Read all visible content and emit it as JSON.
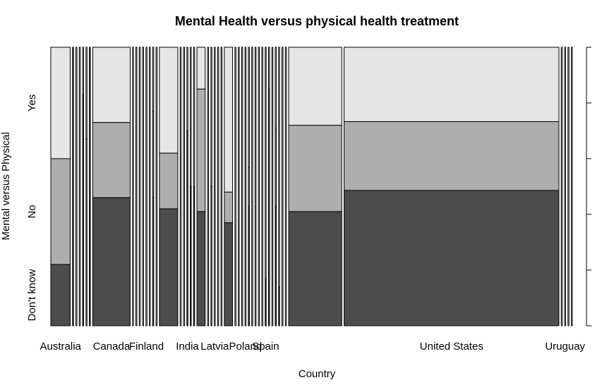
{
  "chart_data": {
    "type": "mosaic",
    "title": "Mental Health versus physical health treatment",
    "xlabel": "Country",
    "ylabel": "Mental versus Physical",
    "categories": [
      "Don't know",
      "No",
      "Yes"
    ],
    "category_colors": [
      "#4d4d4d",
      "#aeaeae",
      "#e6e6e6"
    ],
    "x_tick_labels": [
      "Australia",
      "Canada",
      "Finland",
      "India",
      "Latvia",
      "Poland",
      "Spain",
      "United States",
      "Uruguay"
    ],
    "right_axis_ticks": [
      "0.0",
      "0.2",
      "0.4",
      "0.6",
      "0.8",
      "1.0"
    ],
    "countries": [
      {
        "name": "Australia",
        "weight": 0.0282,
        "segments": [
          0.22,
          0.38,
          0.4
        ],
        "show_label": true
      },
      {
        "name": "",
        "weight": 0.0015,
        "segments": [
          1.0,
          0,
          0
        ]
      },
      {
        "name": "",
        "weight": 0.0015,
        "segments": [
          0,
          0,
          1.0
        ]
      },
      {
        "name": "",
        "weight": 0.0015,
        "segments": [
          0,
          0,
          1.0
        ]
      },
      {
        "name": "",
        "weight": 0.0015,
        "segments": [
          0.83,
          0,
          0.17
        ]
      },
      {
        "name": "",
        "weight": 0.0015,
        "segments": [
          0,
          0.67,
          0.33
        ]
      },
      {
        "name": "",
        "weight": 0.0015,
        "segments": [
          1.0,
          0,
          0
        ]
      },
      {
        "name": "Canada",
        "weight": 0.0545,
        "segments": [
          0.46,
          0.27,
          0.27
        ],
        "show_label": true
      },
      {
        "name": "",
        "weight": 0.0015,
        "segments": [
          0,
          0,
          1.0
        ]
      },
      {
        "name": "",
        "weight": 0.0015,
        "segments": [
          0,
          0,
          1.0
        ]
      },
      {
        "name": "",
        "weight": 0.0015,
        "segments": [
          0,
          0,
          1.0
        ]
      },
      {
        "name": "",
        "weight": 0.0015,
        "segments": [
          0,
          0,
          1.0
        ]
      },
      {
        "name": "Finland",
        "weight": 0.0015,
        "segments": [
          0,
          0,
          1.0
        ],
        "show_label": true
      },
      {
        "name": "",
        "weight": 0.0015,
        "segments": [
          0,
          0,
          1.0
        ]
      },
      {
        "name": "",
        "weight": 0.0015,
        "segments": [
          0.46,
          0.31,
          0.23
        ]
      },
      {
        "name": "",
        "weight": 0.0015,
        "segments": [
          0,
          0,
          1.0
        ]
      },
      {
        "name": "",
        "weight": 0.0268,
        "segments": [
          0.42,
          0.2,
          0.38
        ]
      },
      {
        "name": "",
        "weight": 0.0015,
        "segments": [
          0,
          0,
          1.0
        ]
      },
      {
        "name": "",
        "weight": 0.0015,
        "segments": [
          0,
          0,
          1.0
        ]
      },
      {
        "name": "India",
        "weight": 0.0015,
        "segments": [
          0.7,
          0,
          0.3
        ],
        "show_label": true
      },
      {
        "name": "",
        "weight": 0.0015,
        "segments": [
          0.5,
          0,
          0.5
        ]
      },
      {
        "name": "",
        "weight": 0.0015,
        "segments": [
          0.5,
          0,
          0.5
        ]
      },
      {
        "name": "",
        "weight": 0.012,
        "segments": [
          0.41,
          0.44,
          0.15
        ]
      },
      {
        "name": "",
        "weight": 0.0015,
        "segments": [
          0,
          0,
          1.0
        ]
      },
      {
        "name": "",
        "weight": 0.0015,
        "segments": [
          0,
          0.5,
          0.5
        ]
      },
      {
        "name": "Latvia",
        "weight": 0.0015,
        "segments": [
          0,
          0,
          1.0
        ],
        "show_label": true
      },
      {
        "name": "",
        "weight": 0.0015,
        "segments": [
          0,
          0,
          1.0
        ]
      },
      {
        "name": "",
        "weight": 0.0015,
        "segments": [
          0,
          0,
          1.0
        ]
      },
      {
        "name": "",
        "weight": 0.012,
        "segments": [
          0.37,
          0.11,
          0.52
        ]
      },
      {
        "name": "",
        "weight": 0.0015,
        "segments": [
          0,
          0,
          1.0
        ]
      },
      {
        "name": "",
        "weight": 0.0015,
        "segments": [
          0,
          0,
          1.0
        ]
      },
      {
        "name": "",
        "weight": 0.0015,
        "segments": [
          0,
          0,
          1.0
        ]
      },
      {
        "name": "Poland",
        "weight": 0.0015,
        "segments": [
          0,
          0,
          1.0
        ],
        "show_label": true
      },
      {
        "name": "",
        "weight": 0.0015,
        "segments": [
          0.43,
          0.14,
          0.43
        ]
      },
      {
        "name": "",
        "weight": 0.0015,
        "segments": [
          0,
          0,
          1.0
        ]
      },
      {
        "name": "",
        "weight": 0.0015,
        "segments": [
          0,
          0,
          1.0
        ]
      },
      {
        "name": "",
        "weight": 0.0015,
        "segments": [
          0,
          0,
          1.0
        ]
      },
      {
        "name": "",
        "weight": 0.0015,
        "segments": [
          0,
          0,
          1.0
        ]
      },
      {
        "name": "Spain",
        "weight": 0.0015,
        "segments": [
          0.17,
          0,
          0.83
        ],
        "show_label": true
      },
      {
        "name": "",
        "weight": 0.0015,
        "segments": [
          0.85,
          0,
          0.15
        ]
      },
      {
        "name": "",
        "weight": 0.0015,
        "segments": [
          0,
          0,
          1.0
        ]
      },
      {
        "name": "",
        "weight": 0.0015,
        "segments": [
          0.43,
          0.28,
          0.29
        ]
      },
      {
        "name": "",
        "weight": 0.0015,
        "segments": [
          0.14,
          0,
          0.86
        ]
      },
      {
        "name": "",
        "weight": 0.0015,
        "segments": [
          0,
          0,
          1.0
        ]
      },
      {
        "name": "",
        "weight": 0.0015,
        "segments": [
          0,
          0,
          1.0
        ]
      },
      {
        "name": "",
        "weight": 0.0772,
        "segments": [
          0.41,
          0.31,
          0.28
        ]
      },
      {
        "name": "United States",
        "weight": 0.3124,
        "segments": [
          0.486,
          0.247,
          0.267
        ],
        "show_label": true
      },
      {
        "name": "",
        "weight": 0.0015,
        "segments": [
          0,
          0,
          1.0
        ]
      },
      {
        "name": "Uruguay",
        "weight": 0.0015,
        "segments": [
          0,
          0,
          1.0
        ],
        "show_label": true
      },
      {
        "name": "",
        "weight": 0.0015,
        "segments": [
          0,
          0,
          1.0
        ]
      },
      {
        "name": "",
        "weight": 0.0015,
        "segments": [
          0,
          0,
          1.0
        ]
      }
    ]
  }
}
